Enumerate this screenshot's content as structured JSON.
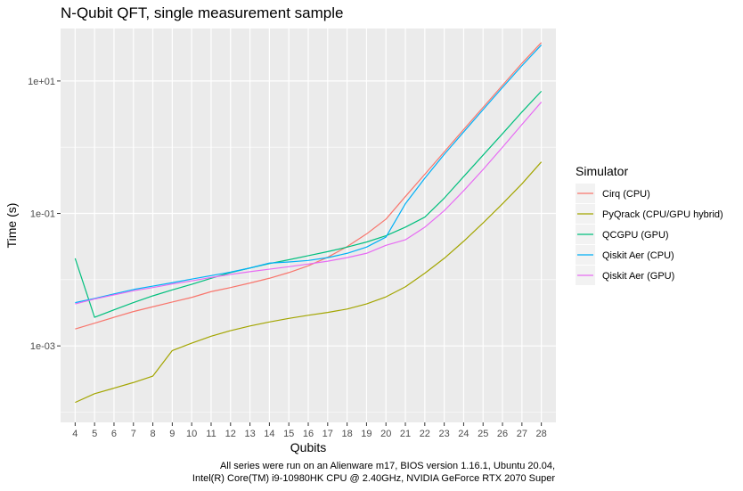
{
  "chart_data": {
    "type": "line",
    "title": "N-Qubit QFT, single measurement sample",
    "xlabel": "Qubits",
    "ylabel": "Time (s)",
    "y_scale": "log10",
    "xlim": [
      3.25,
      28.75
    ],
    "ylim": [
      7e-05,
      62
    ],
    "x": [
      4,
      5,
      6,
      7,
      8,
      9,
      10,
      11,
      12,
      13,
      14,
      15,
      16,
      17,
      18,
      19,
      20,
      21,
      22,
      23,
      24,
      25,
      26,
      27,
      28
    ],
    "x_tick_labels": [
      "4",
      "5",
      "6",
      "7",
      "8",
      "9",
      "10",
      "11",
      "12",
      "13",
      "14",
      "15",
      "16",
      "17",
      "18",
      "19",
      "20",
      "21",
      "22",
      "23",
      "24",
      "25",
      "26",
      "27",
      "28"
    ],
    "y_ticks": [
      0.001,
      0.1,
      10
    ],
    "y_tick_labels": [
      "1e-03",
      "1e-01",
      "1e+01"
    ],
    "grid": true,
    "legend": {
      "title": "Simulator",
      "placement": "right"
    },
    "series": [
      {
        "name": "Cirq (CPU)",
        "color": "#F8766D",
        "values": [
          0.0018,
          0.0022,
          0.0027,
          0.0033,
          0.0039,
          0.0046,
          0.0054,
          0.0066,
          0.0076,
          0.0089,
          0.0105,
          0.0128,
          0.0162,
          0.0218,
          0.0315,
          0.049,
          0.082,
          0.18,
          0.39,
          0.85,
          1.85,
          4.0,
          8.6,
          18.5,
          38.0
        ]
      },
      {
        "name": "PyQrack (CPU/GPU hybrid)",
        "color": "#A3A500",
        "values": [
          0.00014,
          0.00019,
          0.00023,
          0.00028,
          0.00035,
          0.00085,
          0.0011,
          0.0014,
          0.0017,
          0.002,
          0.0023,
          0.0026,
          0.0029,
          0.0032,
          0.0036,
          0.0043,
          0.0055,
          0.0078,
          0.0125,
          0.021,
          0.038,
          0.072,
          0.14,
          0.28,
          0.6
        ]
      },
      {
        "name": "QCGPU (GPU)",
        "color": "#00BF7D",
        "values": [
          0.021,
          0.0027,
          0.0035,
          0.0045,
          0.0057,
          0.007,
          0.0085,
          0.0105,
          0.0128,
          0.015,
          0.0175,
          0.02,
          0.023,
          0.0265,
          0.031,
          0.037,
          0.046,
          0.062,
          0.088,
          0.17,
          0.36,
          0.76,
          1.6,
          3.4,
          7.0
        ]
      },
      {
        "name": "Qiskit Aer (CPU)",
        "color": "#00B0F6",
        "values": [
          0.0045,
          0.0052,
          0.0061,
          0.0071,
          0.008,
          0.009,
          0.0102,
          0.0115,
          0.013,
          0.015,
          0.0178,
          0.0185,
          0.0195,
          0.0215,
          0.025,
          0.031,
          0.044,
          0.14,
          0.34,
          0.78,
          1.7,
          3.7,
          8.0,
          17.0,
          35.0
        ]
      },
      {
        "name": "Qiskit Aer (GPU)",
        "color": "#E76BF3",
        "values": [
          0.0043,
          0.0051,
          0.0059,
          0.0068,
          0.0076,
          0.0086,
          0.0096,
          0.0108,
          0.012,
          0.0132,
          0.0144,
          0.0157,
          0.0172,
          0.019,
          0.0215,
          0.025,
          0.033,
          0.04,
          0.062,
          0.11,
          0.22,
          0.46,
          1.0,
          2.2,
          4.8
        ]
      }
    ]
  },
  "caption": {
    "line1": "All series were run on an Alienware m17, BIOS version 1.16.1, Ubuntu 20.04,",
    "line2": "Intel(R) Core(TM) i9-10980HK CPU @ 2.40GHz, NVIDIA GeForce RTX 2070 Super"
  }
}
